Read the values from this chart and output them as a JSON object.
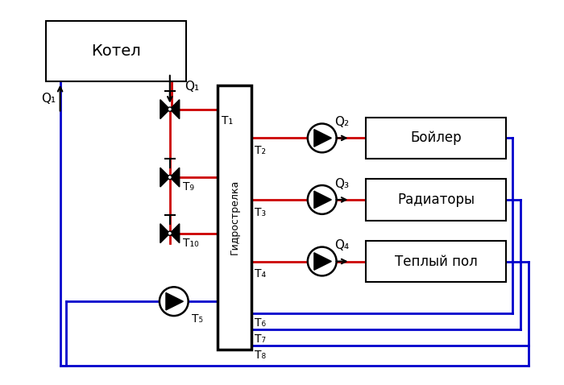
{
  "bg_color": "#ffffff",
  "line_red": "#cc0000",
  "line_blue": "#0000cc",
  "line_black": "#000000",
  "labels": {
    "kotel": "Котел",
    "boiler": "Бойлер",
    "radiatory": "Радиаторы",
    "teply": "Теплый пол",
    "gidro": "Гидрострелка",
    "Q1": "Q₁",
    "Q2": "Q₂",
    "Q3": "Q₃",
    "Q4": "Q₄",
    "T1": "T₁",
    "T2": "T₂",
    "T3": "T₃",
    "T4": "T₄",
    "T5": "T₅",
    "T6": "T₆",
    "T7": "T₇",
    "T8": "T₈",
    "T9": "T₉",
    "T10": "T₁₀"
  }
}
